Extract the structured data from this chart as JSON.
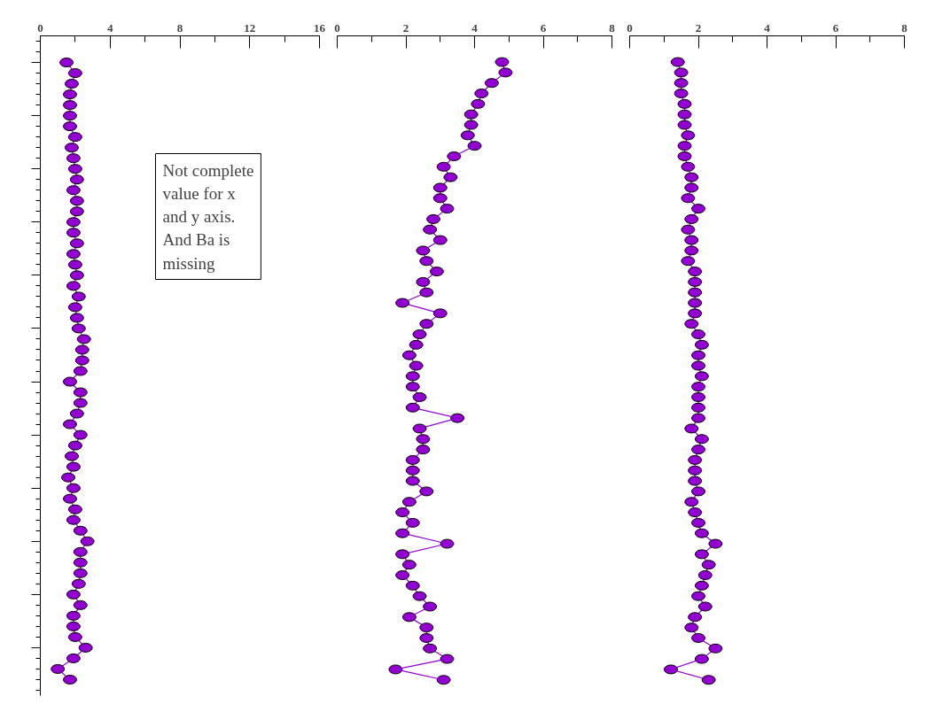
{
  "chart_data": [
    {
      "type": "line",
      "orientation": "horizontal",
      "categories": [
        null,
        null,
        null,
        null,
        null,
        null,
        null,
        null,
        null,
        null,
        null,
        null,
        null,
        null,
        null,
        null,
        null,
        null,
        null,
        null,
        null,
        null,
        null,
        null,
        null,
        null,
        null,
        null,
        null,
        null,
        null,
        null,
        null,
        null,
        null,
        null,
        null,
        null,
        null,
        null,
        null,
        null,
        null,
        null,
        null,
        null,
        null,
        null,
        null,
        null,
        null,
        null,
        null,
        null,
        null,
        null,
        null,
        null,
        null
      ],
      "series": [
        {
          "color": "#9400d3",
          "values": [
            1.5,
            2.0,
            1.8,
            1.7,
            1.7,
            1.7,
            1.7,
            2.0,
            1.8,
            1.9,
            2.0,
            2.1,
            1.9,
            2.1,
            2.1,
            1.9,
            1.9,
            2.1,
            1.9,
            2.0,
            2.1,
            1.9,
            2.2,
            2.0,
            2.1,
            2.2,
            2.5,
            2.4,
            2.4,
            2.3,
            1.7,
            2.3,
            2.3,
            2.1,
            1.7,
            2.3,
            2.0,
            1.8,
            1.9,
            1.6,
            1.9,
            1.7,
            2.0,
            1.9,
            2.3,
            2.7,
            2.3,
            2.3,
            2.3,
            2.2,
            1.9,
            2.3,
            1.9,
            1.9,
            2.0,
            2.6,
            1.9,
            1.0,
            1.7
          ]
        }
      ],
      "xlim": [
        0,
        16
      ],
      "xticks": [
        0,
        4,
        8,
        12,
        16
      ],
      "tick_labels": "x",
      "marker": "circle",
      "line_style": "solid",
      "annotations": [
        "Not complete\nvalue for x\nand y axis.\nAnd Ba is\nmissing"
      ]
    },
    {
      "type": "line",
      "orientation": "horizontal",
      "categories": [
        null,
        null,
        null,
        null,
        null,
        null,
        null,
        null,
        null,
        null,
        null,
        null,
        null,
        null,
        null,
        null,
        null,
        null,
        null,
        null,
        null,
        null,
        null,
        null,
        null,
        null,
        null,
        null,
        null,
        null,
        null,
        null,
        null,
        null,
        null,
        null,
        null,
        null,
        null,
        null,
        null,
        null,
        null,
        null,
        null,
        null,
        null,
        null,
        null,
        null,
        null,
        null,
        null,
        null,
        null,
        null,
        null,
        null,
        null,
        null
      ],
      "series": [
        {
          "color": "#9400d3",
          "values": [
            4.8,
            4.9,
            4.5,
            4.2,
            4.1,
            3.9,
            3.9,
            3.8,
            4.0,
            3.4,
            3.1,
            3.3,
            3.0,
            3.0,
            3.2,
            2.8,
            2.7,
            3.0,
            2.5,
            2.6,
            2.9,
            2.5,
            2.6,
            1.9,
            3.0,
            2.6,
            2.4,
            2.3,
            2.1,
            2.3,
            2.2,
            2.2,
            2.4,
            2.2,
            3.5,
            2.4,
            2.5,
            2.5,
            2.2,
            2.2,
            2.2,
            2.6,
            2.1,
            1.9,
            2.2,
            1.9,
            3.2,
            1.9,
            2.1,
            1.9,
            2.2,
            2.4,
            2.7,
            2.1,
            2.6,
            2.6,
            2.7,
            3.2,
            1.7,
            3.1
          ]
        }
      ],
      "xlim": [
        0,
        8
      ],
      "xticks": [
        0,
        2,
        4,
        6,
        8
      ],
      "tick_labels": "x",
      "marker": "circle",
      "line_style": "solid"
    },
    {
      "type": "line",
      "orientation": "horizontal",
      "categories": [
        null,
        null,
        null,
        null,
        null,
        null,
        null,
        null,
        null,
        null,
        null,
        null,
        null,
        null,
        null,
        null,
        null,
        null,
        null,
        null,
        null,
        null,
        null,
        null,
        null,
        null,
        null,
        null,
        null,
        null,
        null,
        null,
        null,
        null,
        null,
        null,
        null,
        null,
        null,
        null,
        null,
        null,
        null,
        null,
        null,
        null,
        null,
        null,
        null,
        null,
        null,
        null,
        null,
        null,
        null,
        null,
        null,
        null,
        null,
        null
      ],
      "series": [
        {
          "color": "#9400d3",
          "values": [
            1.4,
            1.5,
            1.5,
            1.5,
            1.6,
            1.6,
            1.6,
            1.7,
            1.6,
            1.6,
            1.7,
            1.8,
            1.8,
            1.7,
            2.0,
            1.8,
            1.7,
            1.8,
            1.8,
            1.7,
            1.9,
            1.9,
            1.9,
            1.9,
            1.9,
            1.8,
            2.0,
            2.1,
            2.0,
            2.0,
            2.1,
            2.0,
            2.0,
            2.0,
            2.0,
            1.8,
            2.1,
            2.0,
            1.9,
            1.9,
            1.9,
            2.0,
            1.8,
            1.9,
            2.0,
            2.1,
            2.5,
            2.1,
            2.3,
            2.2,
            2.1,
            2.0,
            2.2,
            1.9,
            1.8,
            2.0,
            2.5,
            2.1,
            1.2,
            2.3
          ]
        }
      ],
      "xlim": [
        0,
        8
      ],
      "xticks": [
        0,
        2,
        4,
        6,
        8
      ],
      "tick_labels": "x",
      "marker": "circle",
      "line_style": "solid"
    }
  ]
}
